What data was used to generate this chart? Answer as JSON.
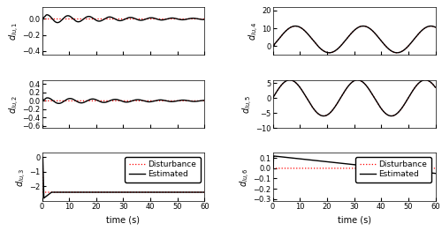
{
  "t_max": 60,
  "dt": 0.01,
  "subplots": [
    {
      "id": 1,
      "ylabel": "$d_{lu,1}$",
      "ylim": [
        -0.45,
        0.15
      ],
      "yticks": [
        0,
        -0.2,
        -0.4
      ],
      "has_legend": false,
      "row": 0,
      "col": 0
    },
    {
      "id": 4,
      "ylabel": "$d_{lu,4}$",
      "ylim": [
        -5,
        22
      ],
      "yticks": [
        20,
        10,
        0
      ],
      "has_legend": false,
      "row": 0,
      "col": 1
    },
    {
      "id": 2,
      "ylabel": "$d_{lu,2}$",
      "ylim": [
        -0.65,
        0.5
      ],
      "yticks": [
        0.4,
        0.2,
        0,
        -0.2,
        -0.4,
        -0.6
      ],
      "has_legend": false,
      "row": 1,
      "col": 0
    },
    {
      "id": 5,
      "ylabel": "$d_{lu,5}$",
      "ylim": [
        -10,
        6
      ],
      "yticks": [
        5,
        0,
        -5,
        -10
      ],
      "has_legend": false,
      "row": 1,
      "col": 1
    },
    {
      "id": 3,
      "ylabel": "$d_{lu,3}$",
      "ylim": [
        -3.0,
        0.3
      ],
      "yticks": [
        0,
        -1,
        -2
      ],
      "has_legend": true,
      "row": 2,
      "col": 0
    },
    {
      "id": 6,
      "ylabel": "$d_{lu,6}$",
      "ylim": [
        -0.32,
        0.15
      ],
      "yticks": [
        0.1,
        0,
        -0.1,
        -0.2,
        -0.3
      ],
      "has_legend": true,
      "row": 2,
      "col": 1
    }
  ],
  "xlabel": "time (s)",
  "dist_color": "#ff0000",
  "est_color": "#000000",
  "tick_fontsize": 6.0,
  "label_fontsize": 7.0,
  "legend_fontsize": 6.5
}
